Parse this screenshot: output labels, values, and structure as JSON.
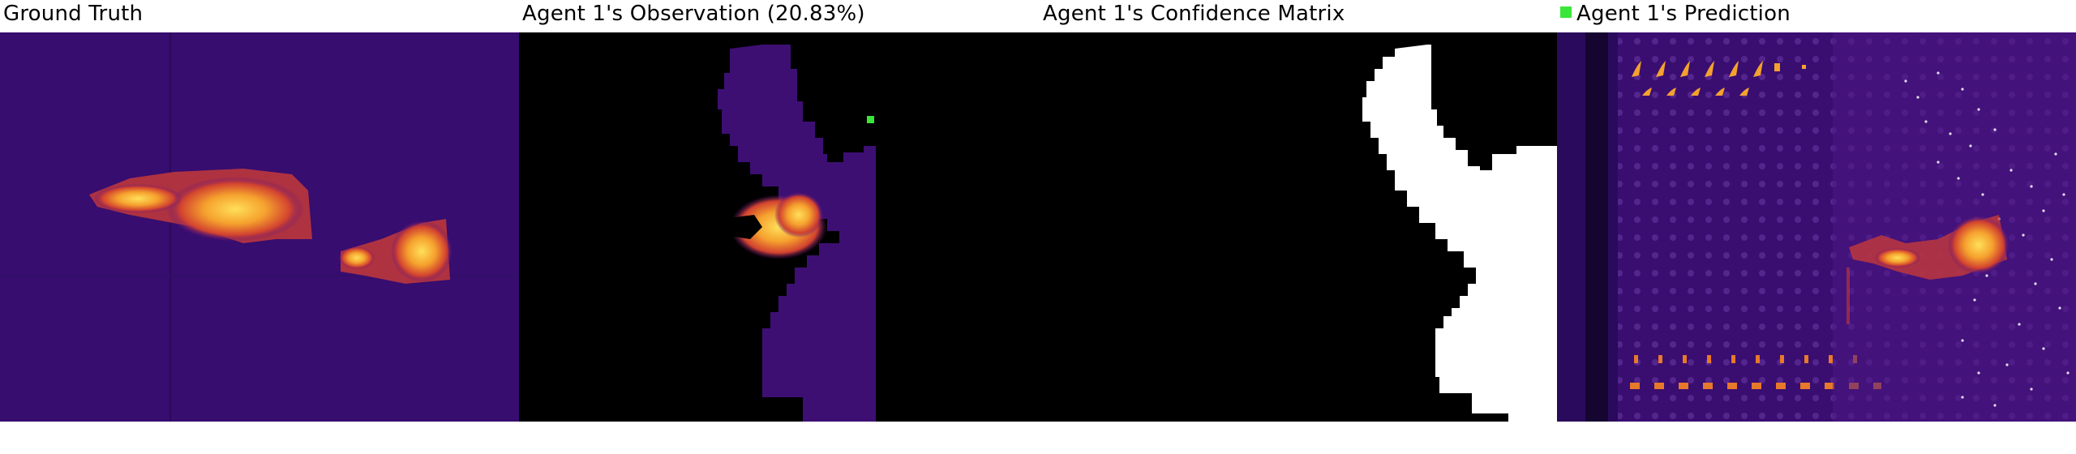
{
  "panels": [
    {
      "title": "Ground Truth"
    },
    {
      "title": "Agent 1's Observation (20.83%)"
    },
    {
      "title": "Agent 1's Confidence Matrix"
    },
    {
      "title": "Agent 1's Prediction"
    }
  ],
  "colors": {
    "background_purple": "#3d0f73",
    "dark_purple": "#2a0a5c",
    "mask_black": "#000000",
    "mask_white": "#ffffff",
    "hot_orange": "#f08a24",
    "hot_yellow": "#ffd84a",
    "agent_marker_green": "#39e639"
  },
  "legend": {
    "marker_icon": "green-square-icon"
  }
}
